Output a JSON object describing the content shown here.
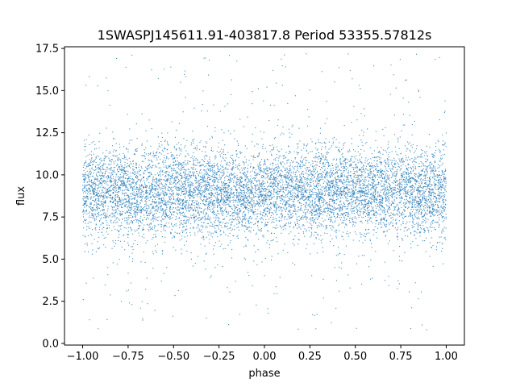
{
  "chart_data": {
    "type": "scatter",
    "title": "1SWASPJ145611.91-403817.8 Period 53355.57812s",
    "xlabel": "phase",
    "ylabel": "flux",
    "xlim": [
      -1.1,
      1.1
    ],
    "ylim": [
      -0.1,
      17.6
    ],
    "xticks": [
      -1.0,
      -0.75,
      -0.5,
      -0.25,
      0.0,
      0.25,
      0.5,
      0.75,
      1.0
    ],
    "xtick_labels": [
      "−1.00",
      "−0.75",
      "−0.50",
      "−0.25",
      "0.00",
      "0.25",
      "0.50",
      "0.75",
      "1.00"
    ],
    "yticks": [
      0.0,
      2.5,
      5.0,
      7.5,
      10.0,
      12.5,
      15.0,
      17.5
    ],
    "ytick_labels": [
      "0.0",
      "2.5",
      "5.0",
      "7.5",
      "10.0",
      "12.5",
      "15.0",
      "17.5"
    ],
    "grid": false,
    "marker_color": "#1f77b4",
    "series": [
      {
        "phase_range": [
          -1.0,
          1.0
        ],
        "flux_core_range": [
          5.5,
          13.0
        ],
        "flux_center": 9.0,
        "flux_outlier_range": [
          0.8,
          17.2
        ],
        "points": [
          [
            -1.0,
            9.1
          ],
          [
            -0.9,
            8.9
          ],
          [
            -0.8,
            9.3
          ],
          [
            -0.7,
            8.8
          ],
          [
            -0.6,
            9.2
          ],
          [
            -0.5,
            8.7
          ],
          [
            -0.4,
            9.0
          ],
          [
            -0.3,
            8.9
          ],
          [
            -0.2,
            9.4
          ],
          [
            -0.1,
            8.6
          ],
          [
            0.0,
            9.2
          ],
          [
            0.1,
            8.8
          ],
          [
            0.2,
            9.1
          ],
          [
            0.3,
            9.0
          ],
          [
            0.4,
            8.7
          ],
          [
            0.5,
            9.3
          ],
          [
            0.6,
            8.9
          ],
          [
            0.7,
            9.0
          ],
          [
            0.8,
            8.6
          ],
          [
            0.9,
            9.2
          ],
          [
            1.0,
            9.0
          ]
        ]
      }
    ]
  }
}
